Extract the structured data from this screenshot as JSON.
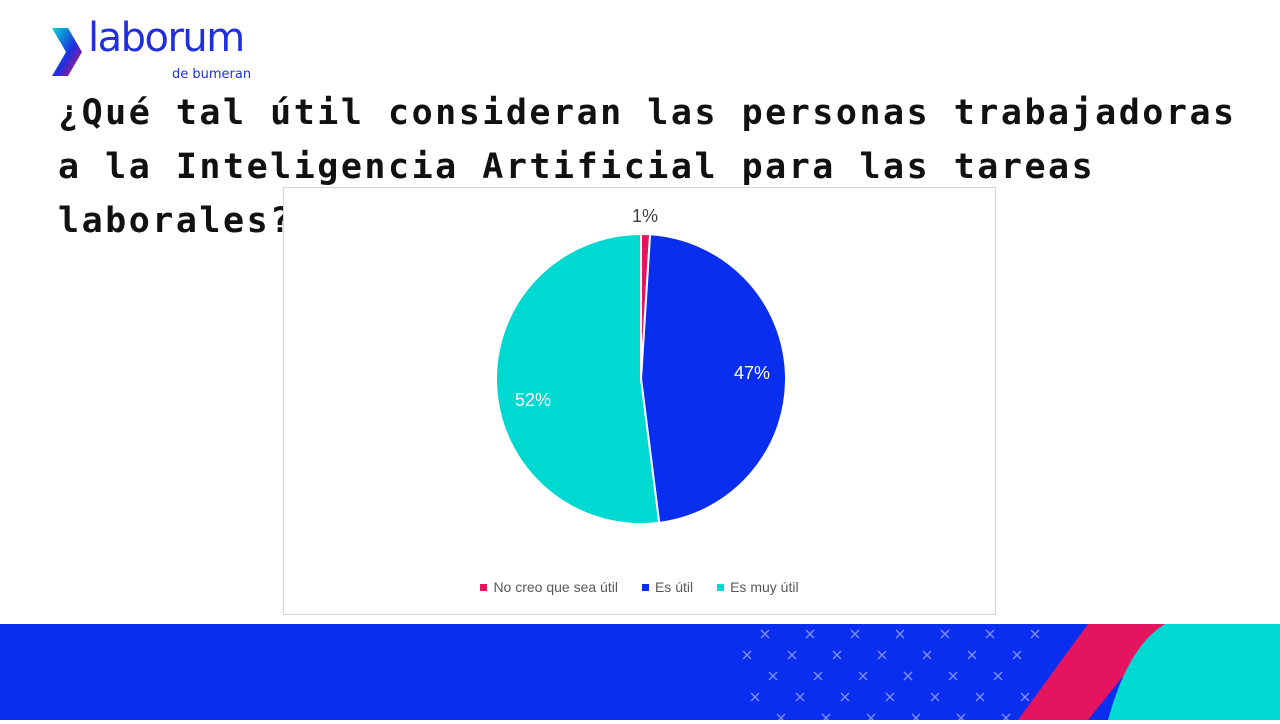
{
  "logo": {
    "wordmark": "laborum",
    "subtitle": "de bumeran",
    "icon": "chevron-logo-mark"
  },
  "title": "¿Qué tal útil consideran las personas trabajadoras a la Inteligencia Artificial para las tareas laborales?",
  "colors": {
    "brand_blue": "#1f2fe0",
    "magenta": "#e5145f",
    "cyan": "#00d8d2",
    "chart_blue": "#0a2ef0"
  },
  "chart_data": {
    "type": "pie",
    "categories": [
      "No creo que sea útil",
      "Es útil",
      "Es muy útil"
    ],
    "values": [
      1,
      47,
      52
    ],
    "data_labels": [
      "1%",
      "47%",
      "52%"
    ],
    "colors": [
      "#e5145f",
      "#0a2ef0",
      "#00d8d2"
    ],
    "start_angle": "12 o'clock",
    "direction": "clockwise",
    "legend_position": "bottom"
  }
}
